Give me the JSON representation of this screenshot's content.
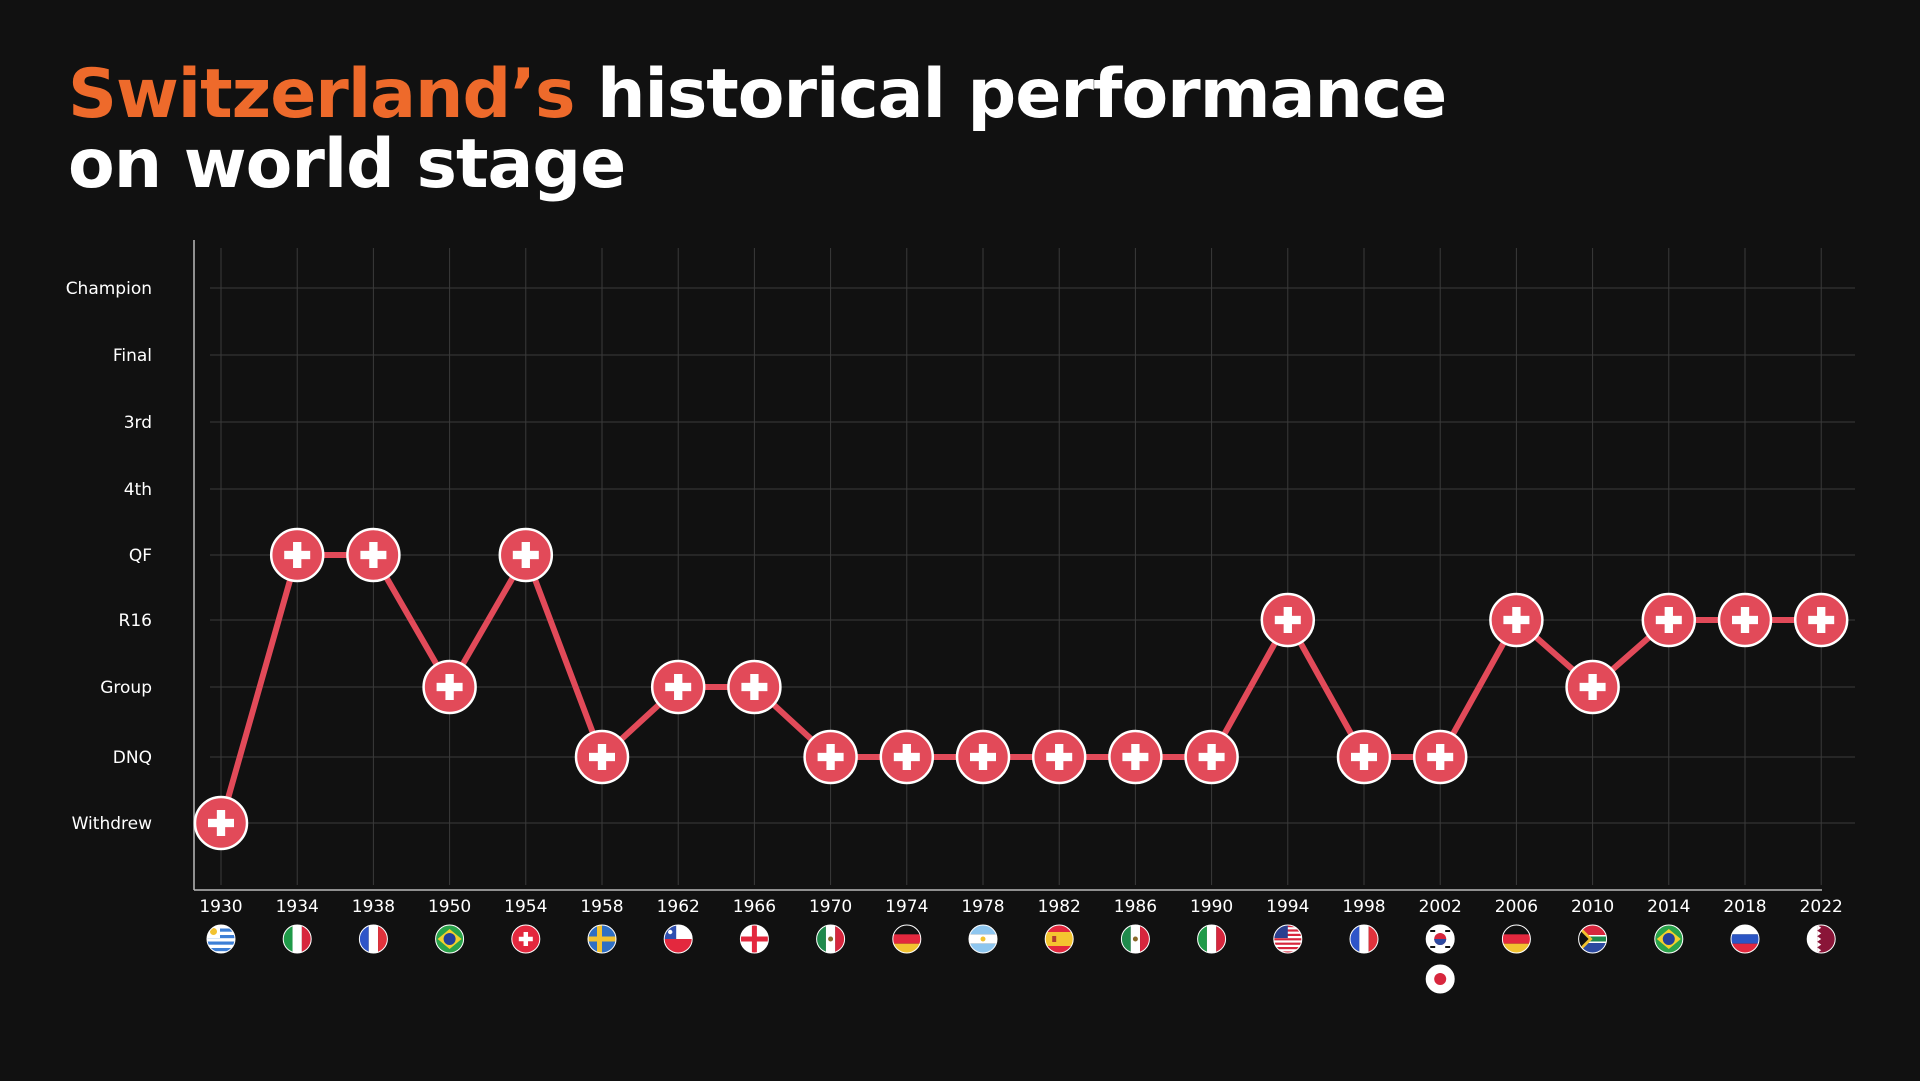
{
  "header": {
    "title_highlight": "Switzerland’s",
    "title_rest": " historical performance",
    "title_line2": "on world stage"
  },
  "chart_data": {
    "type": "line",
    "title": "Switzerland’s historical performance on world stage",
    "xlabel": "",
    "ylabel": "",
    "grid": true,
    "y_categories": [
      "Withdrew",
      "DNQ",
      "Group",
      "R16",
      "QF",
      "4th",
      "3rd",
      "Final",
      "Champion"
    ],
    "categories": [
      "1930",
      "1934",
      "1938",
      "1950",
      "1954",
      "1958",
      "1962",
      "1966",
      "1970",
      "1974",
      "1978",
      "1982",
      "1986",
      "1990",
      "1994",
      "1998",
      "2002",
      "2006",
      "2010",
      "2014",
      "2018",
      "2022"
    ],
    "values": [
      "Withdrew",
      "QF",
      "QF",
      "Group",
      "QF",
      "DNQ",
      "Group",
      "Group",
      "DNQ",
      "DNQ",
      "DNQ",
      "DNQ",
      "DNQ",
      "DNQ",
      "R16",
      "DNQ",
      "DNQ",
      "R16",
      "Group",
      "R16",
      "R16",
      "R16"
    ],
    "hosts": [
      [
        "uruguay"
      ],
      [
        "italy"
      ],
      [
        "france"
      ],
      [
        "brazil"
      ],
      [
        "switzerland"
      ],
      [
        "sweden"
      ],
      [
        "chile"
      ],
      [
        "england"
      ],
      [
        "mexico"
      ],
      [
        "west-germany"
      ],
      [
        "argentina"
      ],
      [
        "spain"
      ],
      [
        "mexico"
      ],
      [
        "italy"
      ],
      [
        "usa"
      ],
      [
        "france"
      ],
      [
        "south-korea",
        "japan"
      ],
      [
        "germany"
      ],
      [
        "south-africa"
      ],
      [
        "brazil"
      ],
      [
        "russia"
      ],
      [
        "qatar"
      ]
    ],
    "colors": {
      "line": "#e24a59",
      "marker": "#e24a59",
      "marker_border": "#ffffff",
      "grid": "#3a3a3a",
      "axis": "#bbbbbb",
      "title_accent": "#ee6a2b"
    }
  }
}
